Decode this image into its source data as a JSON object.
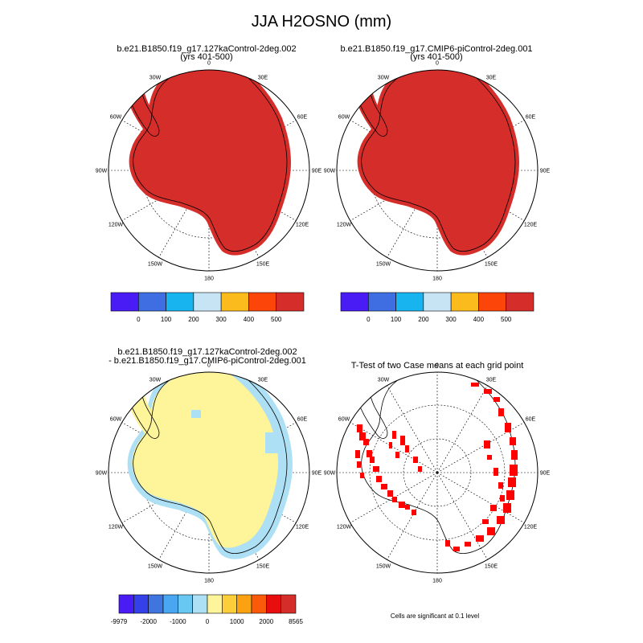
{
  "figure": {
    "main_title": "JJA H2OSNO (mm)",
    "panel1": {
      "title_line1": "b.e21.B1850.f19_g17.127kaControl-2deg.002",
      "title_line2": "(yrs 401-500)"
    },
    "panel2": {
      "title_line1": "b.e21.B1850.f19_g17.CMIP6-piControl-2deg.001",
      "title_line2": "(yrs 401-500)"
    },
    "panel3": {
      "title_line1": "b.e21.B1850.f19_g17.127kaControl-2deg.002",
      "title_line2": "- b.e21.B1850.f19_g17.CMIP6-piControl-2deg.001"
    },
    "panel4": {
      "title_line1": "T-Test of two Case means at each grid point",
      "footnote": "Cells are significant at 0.1 level"
    }
  },
  "map_labels": [
    "0",
    "30E",
    "60E",
    "90E",
    "120E",
    "150E",
    "180",
    "150W",
    "120W",
    "90W",
    "60W",
    "30W"
  ],
  "colorbar_abs": {
    "labels": [
      "0",
      "100",
      "200",
      "300",
      "400",
      "500"
    ],
    "colors": [
      "#4a1cf5",
      "#3e6ee2",
      "#17b4f0",
      "#c6e4f4",
      "#fcbb1d",
      "#fb4509",
      "#d42d2a"
    ]
  },
  "colorbar_diff": {
    "labels": [
      "-9979",
      "-2000",
      "-1000",
      "0",
      "1000",
      "2000",
      "8565"
    ],
    "colors": [
      "#4a1cf5",
      "#3440e8",
      "#3f75df",
      "#49a7f1",
      "#69c8f1",
      "#aee0f5",
      "#fef49a",
      "#fccf3a",
      "#fca210",
      "#fb5b08",
      "#e80e0e",
      "#d42d2a"
    ]
  },
  "colors": {
    "absolute_fill": "#d42d2a",
    "diff_positive": "#fef49a",
    "diff_negative": "#aee0f5",
    "diff_strong_positive": "#cc1a1a",
    "significant": "#ff0000"
  }
}
